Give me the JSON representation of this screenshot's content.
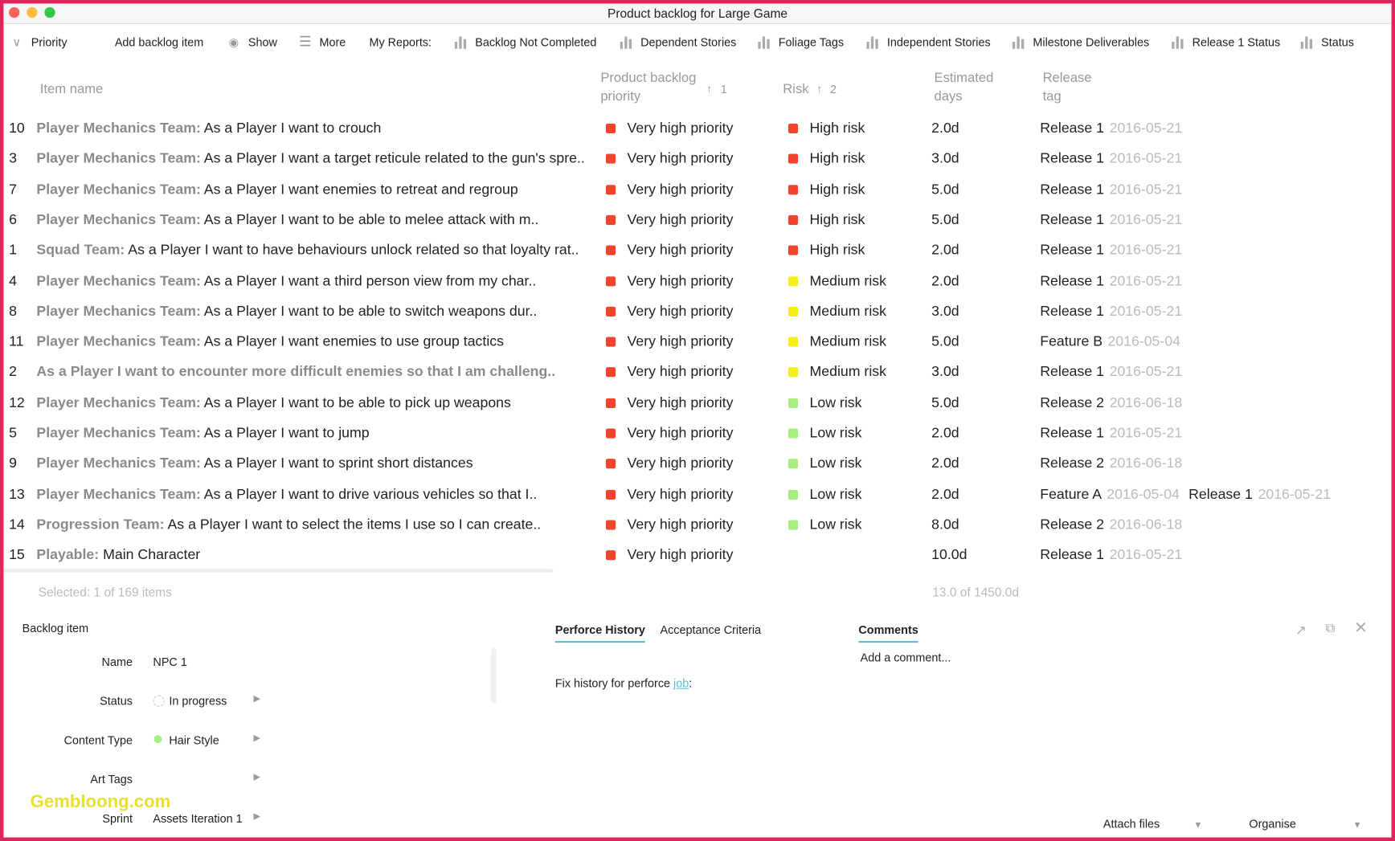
{
  "window": {
    "title": "Product backlog for Large Game"
  },
  "toolbar": {
    "items": [
      "Priority",
      "Add backlog item",
      "Show",
      "More"
    ],
    "reports_label": "My Reports:",
    "reports": [
      "Backlog Not Completed",
      "Dependent Stories",
      "Foliage Tags",
      "Independent Stories",
      "Milestone Deliverables",
      "Release 1 Status",
      "Status"
    ]
  },
  "table": {
    "headers": {
      "item": "Item name",
      "priority": "Product backlog priority",
      "priority_sort": "1",
      "risk": "Risk",
      "risk_sort": "2",
      "days": "Estimated days",
      "release": "Release tag"
    },
    "rows": [
      {
        "id": 10,
        "team": "Player Mechanics Team:",
        "text": "As a Player I want to crouch",
        "priority": {
          "label": "Very high priority",
          "color": "#f2432d"
        },
        "risk": {
          "label": "High risk",
          "color": "#f2432d"
        },
        "days": "2.0d",
        "releases": [
          {
            "name": "Release 1",
            "date": "2016-05-21"
          }
        ]
      },
      {
        "id": 3,
        "team": "Player Mechanics Team:",
        "text": "As a Player I want a target reticule related to the gun's spre..",
        "priority": {
          "label": "Very high priority",
          "color": "#f2432d"
        },
        "risk": {
          "label": "High risk",
          "color": "#f2432d"
        },
        "days": "3.0d",
        "releases": [
          {
            "name": "Release 1",
            "date": "2016-05-21"
          }
        ]
      },
      {
        "id": 7,
        "team": "Player Mechanics Team:",
        "text": "As a Player I want enemies to retreat and regroup",
        "priority": {
          "label": "Very high priority",
          "color": "#f2432d"
        },
        "risk": {
          "label": "High risk",
          "color": "#f2432d"
        },
        "days": "5.0d",
        "releases": [
          {
            "name": "Release 1",
            "date": "2016-05-21"
          }
        ]
      },
      {
        "id": 6,
        "team": "Player Mechanics Team:",
        "text": "As a Player I want to be able to melee attack with m..",
        "priority": {
          "label": "Very high priority",
          "color": "#f2432d"
        },
        "risk": {
          "label": "High risk",
          "color": "#f2432d"
        },
        "days": "5.0d",
        "releases": [
          {
            "name": "Release 1",
            "date": "2016-05-21"
          }
        ]
      },
      {
        "id": 1,
        "team": "Squad Team:",
        "text": "As a Player I want to have behaviours unlock related so that loyalty rat..",
        "priority": {
          "label": "Very high priority",
          "color": "#f2432d"
        },
        "risk": {
          "label": "High risk",
          "color": "#f2432d"
        },
        "days": "2.0d",
        "releases": [
          {
            "name": "Release 1",
            "date": "2016-05-21"
          }
        ]
      },
      {
        "id": 4,
        "team": "Player Mechanics Team:",
        "text": "As a Player I want a third person view from my char..",
        "priority": {
          "label": "Very high priority",
          "color": "#f2432d"
        },
        "risk": {
          "label": "Medium risk",
          "color": "#f5ee1c"
        },
        "days": "2.0d",
        "releases": [
          {
            "name": "Release 1",
            "date": "2016-05-21"
          }
        ]
      },
      {
        "id": 8,
        "team": "Player Mechanics Team:",
        "text": "As a Player I want to be able to switch weapons dur..",
        "priority": {
          "label": "Very high priority",
          "color": "#f2432d"
        },
        "risk": {
          "label": "Medium risk",
          "color": "#f5ee1c"
        },
        "days": "3.0d",
        "releases": [
          {
            "name": "Release 1",
            "date": "2016-05-21"
          }
        ]
      },
      {
        "id": 11,
        "team": "Player Mechanics Team:",
        "text": "As a Player I want enemies to use group tactics",
        "priority": {
          "label": "Very high priority",
          "color": "#f2432d"
        },
        "risk": {
          "label": "Medium risk",
          "color": "#f5ee1c"
        },
        "days": "5.0d",
        "releases": [
          {
            "name": "Feature B",
            "date": "2016-05-04"
          }
        ]
      },
      {
        "id": 2,
        "team": "As a Player I want to encounter more difficult enemies so that I am challeng..",
        "priority": {
          "label": "Very high priority",
          "color": "#f2432d"
        },
        "risk": {
          "label": "Medium risk",
          "color": "#f5ee1c"
        },
        "days": "3.0d",
        "releases": [
          {
            "name": "Release 1",
            "date": "2016-05-21"
          }
        ]
      },
      {
        "id": 12,
        "team": "Player Mechanics Team:",
        "text": "As a Player I want to be able to pick up weapons",
        "priority": {
          "label": "Very high priority",
          "color": "#f2432d"
        },
        "risk": {
          "label": "Low risk",
          "color": "#a6ef7e"
        },
        "days": "5.0d",
        "releases": [
          {
            "name": "Release 2",
            "date": "2016-06-18"
          }
        ]
      },
      {
        "id": 5,
        "team": "Player Mechanics Team:",
        "text": "As a Player I want to jump",
        "priority": {
          "label": "Very high priority",
          "color": "#f2432d"
        },
        "risk": {
          "label": "Low risk",
          "color": "#a6ef7e"
        },
        "days": "2.0d",
        "releases": [
          {
            "name": "Release 1",
            "date": "2016-05-21"
          }
        ]
      },
      {
        "id": 9,
        "team": "Player Mechanics Team:",
        "text": "As a Player I want to sprint short distances",
        "priority": {
          "label": "Very high priority",
          "color": "#f2432d"
        },
        "risk": {
          "label": "Low risk",
          "color": "#a6ef7e"
        },
        "days": "2.0d",
        "releases": [
          {
            "name": "Release 2",
            "date": "2016-06-18"
          }
        ]
      },
      {
        "id": 13,
        "team": "Player Mechanics Team:",
        "text": "As a Player I want to drive various vehicles so that I..",
        "priority": {
          "label": "Very high priority",
          "color": "#f2432d"
        },
        "risk": {
          "label": "Low risk",
          "color": "#a6ef7e"
        },
        "days": "2.0d",
        "releases": [
          {
            "name": "Feature A",
            "date": "2016-05-04"
          },
          {
            "name": "Release 1",
            "date": "2016-05-21"
          }
        ]
      },
      {
        "id": 14,
        "team": "Progression Team:",
        "text": "As a Player I want to select the items I use so I can create..",
        "priority": {
          "label": "Very high priority",
          "color": "#f2432d"
        },
        "risk": {
          "label": "Low risk",
          "color": "#a6ef7e"
        },
        "days": "8.0d",
        "releases": [
          {
            "name": "Release 2",
            "date": "2016-06-18"
          }
        ]
      },
      {
        "id": 15,
        "team": "Playable:",
        "text": "Main Character",
        "priority": {
          "label": "Very high priority",
          "color": "#f2432d"
        },
        "days": "10.0d",
        "releases": [
          {
            "name": "Release 1",
            "date": "2016-05-21"
          }
        ]
      }
    ],
    "footer": {
      "selected": "Selected: 1 of 169 items",
      "total": "13.0 of 1450.0d"
    }
  },
  "detail": {
    "title": "Backlog item",
    "fields": [
      {
        "label": "Name",
        "value": "NPC 1"
      },
      {
        "label": "Status",
        "value": "In progress"
      },
      {
        "label": "Content Type",
        "value": "Hair Style"
      },
      {
        "label": "Art Tags"
      },
      {
        "label": "Sprint",
        "value": "Assets Iteration 1"
      }
    ]
  },
  "tabs": {
    "left": [
      "Perforce History",
      "Acceptance Criteria"
    ],
    "right": "Comments"
  },
  "history": {
    "text": "Fix history for perforce",
    "link": "job",
    "suffix": ":"
  },
  "comment": {
    "placeholder": "Add a comment..."
  },
  "bottom": {
    "attach": "Attach files",
    "organise": "Organise"
  },
  "watermark": "Gembloong.com"
}
